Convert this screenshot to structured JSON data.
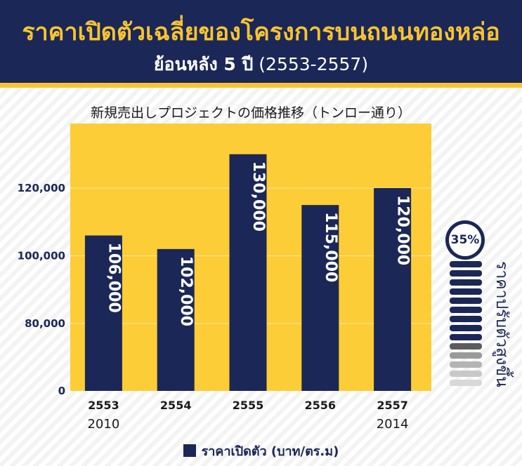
{
  "header": {
    "title": "ราคาเปิดตัวเฉลี่ยของโครงการบนถนนทองหล่อ",
    "subtitle_bold": "ย้อนหลัง 5 ปี",
    "subtitle_range": "(2553-2557)"
  },
  "colors": {
    "navy": "#1b2756",
    "gold": "#f7c431",
    "plot_bg": "#fccd36",
    "bar": "#1b2756"
  },
  "chart_data": {
    "type": "bar",
    "title": "新規売出しプロジェクトの価格推移（トンロー通り）",
    "categories": [
      "2553",
      "2554",
      "2555",
      "2556",
      "2557"
    ],
    "secondary_labels": [
      "2010",
      "",
      "",
      "",
      "2014"
    ],
    "series": [
      {
        "name": "ราคาเปิดตัว (บาท/ตร.ม)",
        "values": [
          106000,
          102000,
          130000,
          115000,
          120000
        ],
        "labels": [
          "106,000",
          "102,000",
          "130,000",
          "115,000",
          "120,000"
        ]
      }
    ],
    "yticks": [
      0,
      80000,
      100000,
      120000
    ],
    "ytick_labels": [
      "0",
      "80,000",
      "100,000",
      "120,000"
    ],
    "ylim": [
      0,
      140000
    ],
    "y_break": [
      0,
      80000
    ],
    "grid": true,
    "legend_position": "bottom"
  },
  "side_indicator": {
    "percent": "35%",
    "label": "ราคาปรับตัวสูงขึ้น",
    "bar_colors": [
      "#1b2756",
      "#1b2756",
      "#1b2756",
      "#1b2756",
      "#1b2756",
      "#1b2756",
      "#1b2756",
      "#1b2756",
      "#1b2756",
      "#5c5c5c",
      "#9a9a9a",
      "#b4b4b4",
      "#c8c8c8",
      "#d8d8d8"
    ]
  }
}
